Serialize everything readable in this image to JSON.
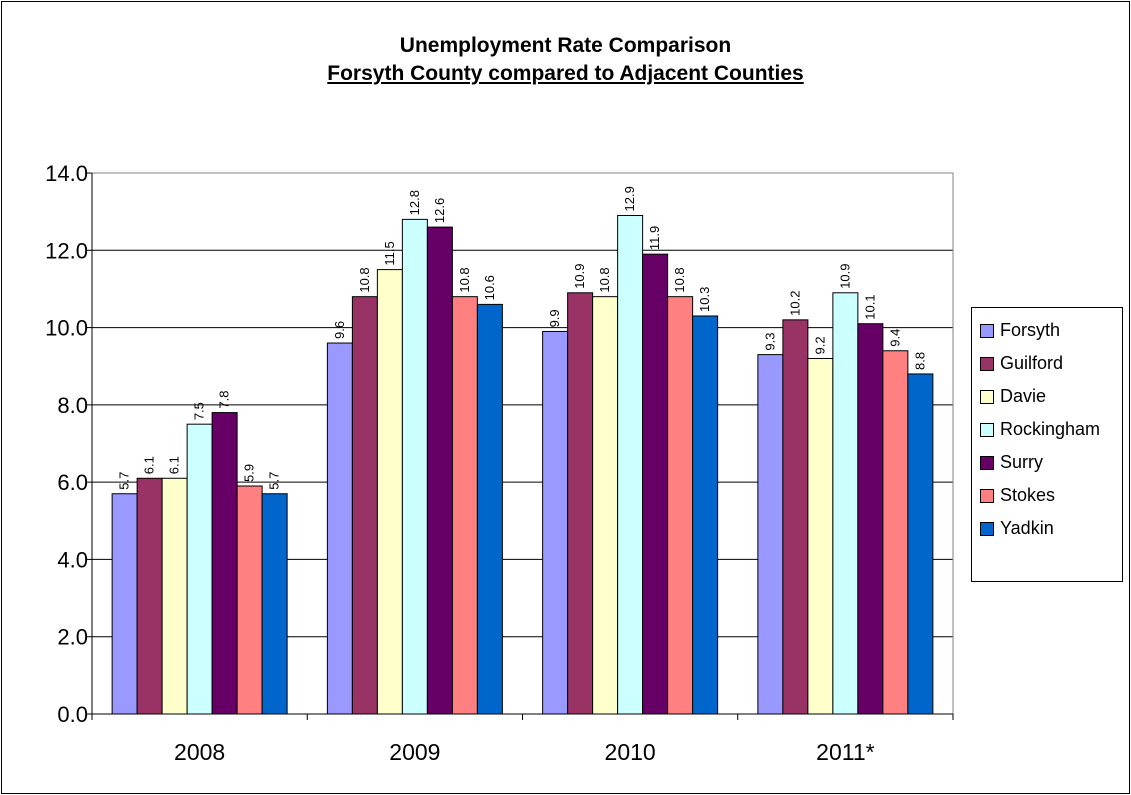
{
  "chart_data": {
    "type": "bar",
    "title": "Unemployment Rate Comparison",
    "subtitle": "Forsyth County compared to Adjacent Counties",
    "categories": [
      "2008",
      "2009",
      "2010",
      "2011*"
    ],
    "ylim": [
      0,
      14
    ],
    "yticks": [
      "0.0",
      "2.0",
      "4.0",
      "6.0",
      "8.0",
      "10.0",
      "12.0",
      "14.0"
    ],
    "grid": true,
    "legend_position": "right",
    "series": [
      {
        "name": "Forsyth",
        "color": "#9999FF",
        "values": [
          5.7,
          9.6,
          9.9,
          9.3
        ]
      },
      {
        "name": "Guilford",
        "color": "#993366",
        "values": [
          6.1,
          10.8,
          10.9,
          10.2
        ]
      },
      {
        "name": "Davie",
        "color": "#FFFFCC",
        "values": [
          6.1,
          11.5,
          10.8,
          9.2
        ]
      },
      {
        "name": "Rockingham",
        "color": "#CCFFFF",
        "values": [
          7.5,
          12.8,
          12.9,
          10.9
        ]
      },
      {
        "name": "Surry",
        "color": "#660066",
        "values": [
          7.8,
          12.6,
          11.9,
          10.1
        ]
      },
      {
        "name": "Stokes",
        "color": "#FF8080",
        "values": [
          5.9,
          10.8,
          10.8,
          9.4
        ]
      },
      {
        "name": "Yadkin",
        "color": "#0066CC",
        "values": [
          5.7,
          10.6,
          10.3,
          8.8
        ]
      }
    ]
  }
}
